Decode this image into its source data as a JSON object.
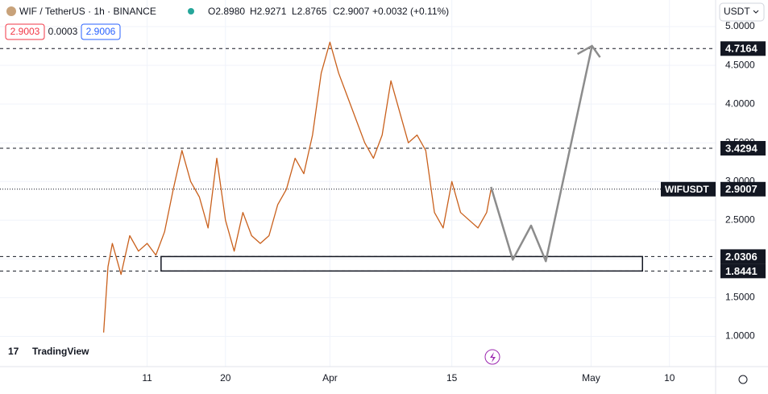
{
  "header": {
    "symbol": "WIF / TetherUS · 1h · BINANCE",
    "open": "O2.8980",
    "high": "H2.9271",
    "low": "L2.8765",
    "close": "C2.9007",
    "change": "+0.0032 (+0.11%)",
    "bid": "2.9003",
    "spread": "0.0003",
    "ask": "2.9006",
    "currency": "USDT",
    "logo": "TradingView"
  },
  "chart_data": {
    "type": "line",
    "x": [
      5,
      5.5,
      6,
      7,
      8,
      9,
      10,
      11,
      12,
      13,
      14,
      15,
      16,
      17,
      18,
      19,
      20,
      21,
      22,
      23,
      24,
      25,
      26,
      27,
      28,
      29,
      30,
      31,
      32,
      33,
      34,
      35,
      36,
      37,
      38,
      39,
      40,
      41,
      42,
      43,
      44,
      45,
      46,
      47,
      48,
      49,
      49.5
    ],
    "series": [
      {
        "name": "WIFUSDT",
        "color": "#c9601c",
        "values": [
          1.05,
          1.9,
          2.2,
          1.8,
          2.3,
          2.1,
          2.2,
          2.05,
          2.35,
          2.9,
          3.4,
          3.0,
          2.8,
          2.4,
          3.3,
          2.5,
          2.1,
          2.6,
          2.3,
          2.2,
          2.3,
          2.7,
          2.9,
          3.3,
          3.1,
          3.6,
          4.4,
          4.8,
          4.4,
          4.1,
          3.8,
          3.5,
          3.3,
          3.6,
          4.3,
          3.9,
          3.5,
          3.6,
          3.4,
          2.6,
          2.4,
          3.0,
          2.6,
          2.5,
          2.4,
          2.6,
          2.9
        ]
      }
    ],
    "projection": {
      "color": "#8c8c8c",
      "x": [
        49.5,
        52,
        54.1,
        55.8,
        61.1
      ],
      "values": [
        2.93,
        1.99,
        2.43,
        1.97,
        4.75
      ]
    },
    "zone": {
      "x": [
        11.6,
        66.9
      ],
      "values": [
        2.0306,
        1.8441
      ]
    },
    "levels": [
      {
        "value": 4.7164,
        "label": "4.7164"
      },
      {
        "value": 3.4294,
        "label": "3.4294"
      },
      {
        "value": 2.0306,
        "label": "2.0306"
      },
      {
        "value": 1.8441,
        "label": "1.8441"
      }
    ],
    "last": {
      "value": 2.9007,
      "name": "WIFUSDT",
      "label": "2.9007"
    },
    "xlim": [
      -6.9,
      75.3
    ],
    "ylim": [
      0.6094,
      5.3438
    ],
    "xticks": [
      {
        "value": 10,
        "label": "11"
      },
      {
        "value": 19,
        "label": "20"
      },
      {
        "value": 31,
        "label": "Apr"
      },
      {
        "value": 45,
        "label": "15"
      },
      {
        "value": 61,
        "label": "May"
      },
      {
        "value": 70,
        "label": "10"
      }
    ],
    "yticks": [
      {
        "value": 1,
        "label": "1.0000"
      },
      {
        "value": 1.5,
        "label": "1.5000"
      },
      {
        "value": 2,
        "label": "2.0000"
      },
      {
        "value": 2.5,
        "label": "2.5000"
      },
      {
        "value": 3,
        "label": "3.0000"
      },
      {
        "value": 3.5,
        "label": "3.5000"
      },
      {
        "value": 4,
        "label": "4.0000"
      },
      {
        "value": 4.5,
        "label": "4.5000"
      },
      {
        "value": 5,
        "label": "5.0000"
      }
    ],
    "grid": true
  }
}
